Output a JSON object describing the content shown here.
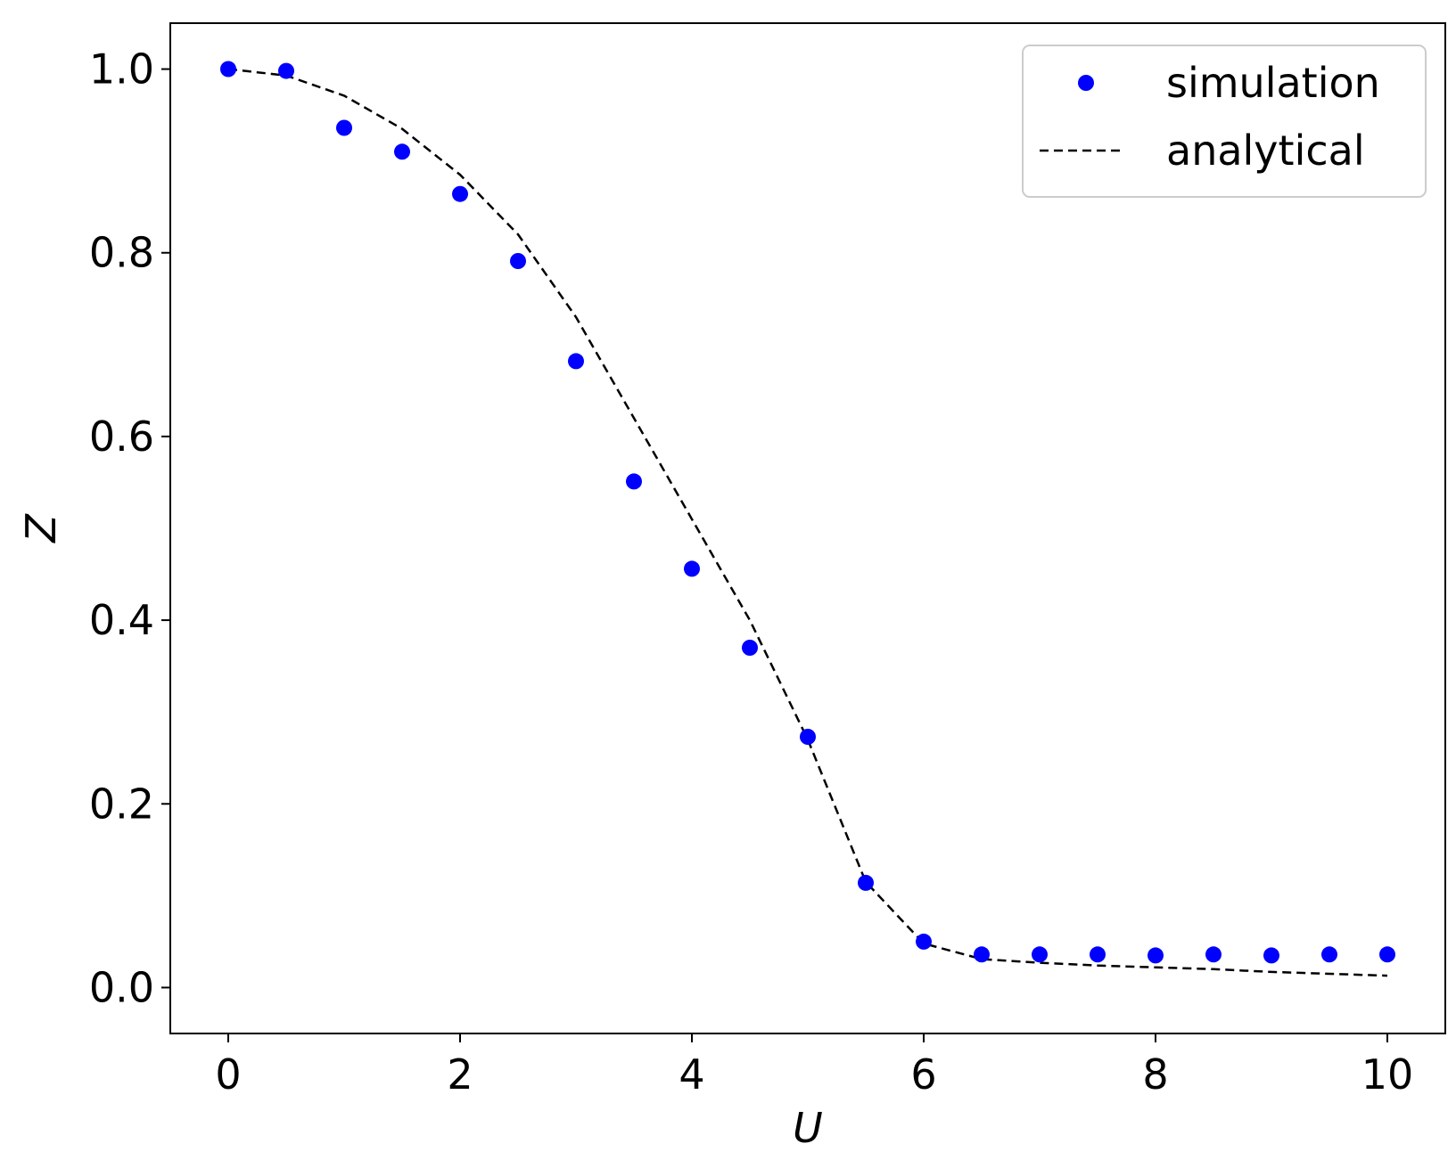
{
  "chart_data": {
    "type": "scatter",
    "title": "",
    "xlabel": "U",
    "ylabel": "Z",
    "xlim": [
      -0.5,
      10.5
    ],
    "ylim": [
      -0.05,
      1.05
    ],
    "xticks": [
      0,
      2,
      4,
      6,
      8,
      10
    ],
    "xtick_labels": [
      "0",
      "2",
      "4",
      "6",
      "8",
      "10"
    ],
    "yticks": [
      0.0,
      0.2,
      0.4,
      0.6,
      0.8,
      1.0
    ],
    "ytick_labels": [
      "0.0",
      "0.2",
      "0.4",
      "0.6",
      "0.8",
      "1.0"
    ],
    "grid": false,
    "legend_position": "top-right",
    "series": [
      {
        "name": "simulation",
        "style": "markers",
        "color": "#0000ff",
        "x": [
          0,
          0.5,
          1,
          1.5,
          2,
          2.5,
          3,
          3.5,
          4,
          4.5,
          5,
          5.5,
          6,
          6.5,
          7,
          7.5,
          8,
          8.5,
          9,
          9.5,
          10
        ],
        "y": [
          1.0,
          0.998,
          0.936,
          0.91,
          0.864,
          0.791,
          0.682,
          0.551,
          0.456,
          0.37,
          0.273,
          0.114,
          0.05,
          0.036,
          0.036,
          0.036,
          0.035,
          0.036,
          0.035,
          0.036,
          0.036
        ]
      },
      {
        "name": "analytical",
        "style": "dashed-line",
        "color": "#000000",
        "x": [
          0,
          0.5,
          1,
          1.5,
          2,
          2.5,
          3,
          3.5,
          4,
          4.5,
          5,
          5.5,
          6,
          6.5,
          7,
          7.5,
          8,
          8.5,
          9,
          9.5,
          10
        ],
        "y": [
          1.0,
          0.993,
          0.971,
          0.935,
          0.885,
          0.82,
          0.73,
          0.62,
          0.51,
          0.4,
          0.27,
          0.115,
          0.048,
          0.031,
          0.027,
          0.024,
          0.022,
          0.02,
          0.017,
          0.015,
          0.013
        ]
      }
    ]
  }
}
